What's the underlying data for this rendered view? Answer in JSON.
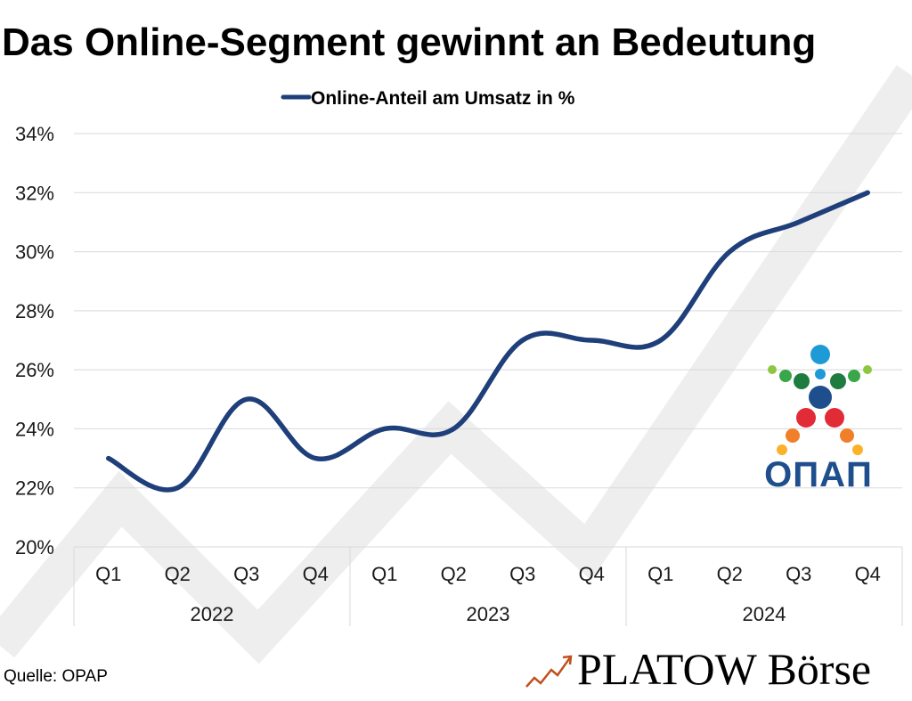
{
  "chart_data": {
    "type": "line",
    "title": "Das Online-Segment gewinnt an Bedeutung",
    "categories": [
      "Q1",
      "Q2",
      "Q3",
      "Q4",
      "Q1",
      "Q2",
      "Q3",
      "Q4",
      "Q1",
      "Q2",
      "Q3",
      "Q4"
    ],
    "groups": [
      {
        "label": "2022",
        "count": 4
      },
      {
        "label": "2023",
        "count": 4
      },
      {
        "label": "2024",
        "count": 4
      }
    ],
    "series": [
      {
        "name": "Online-Anteil am Umsatz in %",
        "values": [
          23,
          22,
          25,
          23,
          24,
          24,
          27,
          27,
          27,
          30,
          31,
          32
        ],
        "color": "#1f3f7a"
      }
    ],
    "yticks": [
      "20%",
      "22%",
      "24%",
      "26%",
      "28%",
      "30%",
      "32%",
      "34%"
    ],
    "ylim": [
      20,
      34
    ],
    "grid": true,
    "legend_position": "top-center"
  },
  "source": "Quelle: OPAP",
  "brand": "PLATOW Börse",
  "logo": {
    "text": "ΟΠΑΠ",
    "icon": "opap-logo-icon"
  },
  "colors": {
    "line": "#1f3f7a",
    "grid": "#d9d9d9",
    "watermark": "#eeeeee",
    "logo_blue": "#1f4e8c",
    "brand_arrow": "#c0501d"
  }
}
